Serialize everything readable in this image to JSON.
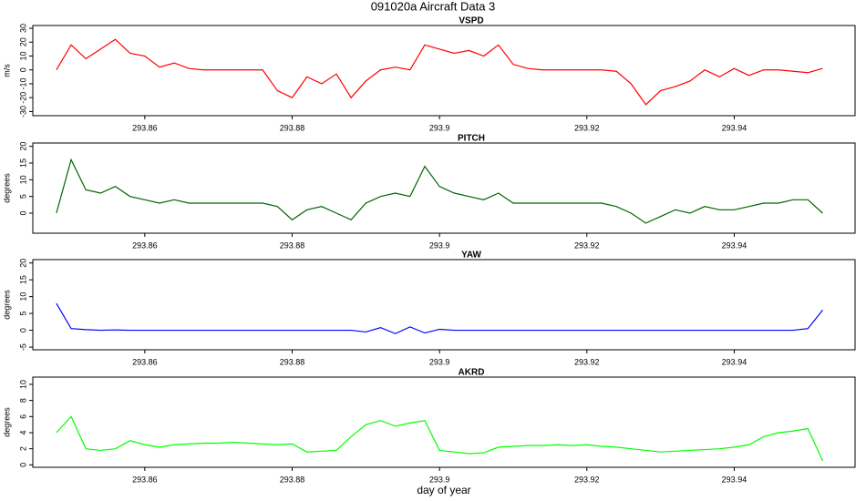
{
  "title": "091020a   Aircraft Data 3",
  "xlabel": "day of year",
  "chart_data": [
    {
      "type": "line",
      "title": "VSPD",
      "ylabel": "m/s",
      "color": "#ff0000",
      "x": [
        293.848,
        293.85,
        293.852,
        293.854,
        293.856,
        293.858,
        293.86,
        293.862,
        293.864,
        293.866,
        293.868,
        293.87,
        293.872,
        293.874,
        293.876,
        293.878,
        293.88,
        293.882,
        293.884,
        293.886,
        293.888,
        293.89,
        293.892,
        293.894,
        293.896,
        293.898,
        293.9,
        293.902,
        293.904,
        293.906,
        293.908,
        293.91,
        293.912,
        293.914,
        293.916,
        293.918,
        293.92,
        293.922,
        293.924,
        293.926,
        293.928,
        293.93,
        293.932,
        293.934,
        293.936,
        293.938,
        293.94,
        293.942,
        293.944,
        293.946,
        293.948,
        293.95,
        293.952
      ],
      "values": [
        0,
        18,
        8,
        15,
        22,
        12,
        10,
        2,
        5,
        1,
        0,
        0,
        0,
        0,
        0,
        -15,
        -20,
        -5,
        -10,
        -3,
        -20,
        -8,
        0,
        2,
        0,
        18,
        15,
        12,
        14,
        10,
        18,
        4,
        1,
        0,
        0,
        0,
        0,
        0,
        -1,
        -10,
        -25,
        -15,
        -12,
        -8,
        0,
        -5,
        1,
        -4,
        0,
        0,
        -1,
        -2,
        1
      ],
      "xlim": [
        293.8448,
        293.9564
      ],
      "xticks": [
        293.86,
        293.88,
        293.9,
        293.92,
        293.94
      ],
      "ylim": [
        -33,
        32
      ],
      "yticks": [
        -30,
        -20,
        -10,
        0,
        10,
        20,
        30
      ]
    },
    {
      "type": "line",
      "title": "PITCH",
      "ylabel": "degrees",
      "color": "#006400",
      "x": [
        293.848,
        293.85,
        293.852,
        293.854,
        293.856,
        293.858,
        293.86,
        293.862,
        293.864,
        293.866,
        293.868,
        293.87,
        293.872,
        293.874,
        293.876,
        293.878,
        293.88,
        293.882,
        293.884,
        293.886,
        293.888,
        293.89,
        293.892,
        293.894,
        293.896,
        293.898,
        293.9,
        293.902,
        293.904,
        293.906,
        293.908,
        293.91,
        293.912,
        293.914,
        293.916,
        293.918,
        293.92,
        293.922,
        293.924,
        293.926,
        293.928,
        293.93,
        293.932,
        293.934,
        293.936,
        293.938,
        293.94,
        293.942,
        293.944,
        293.946,
        293.948,
        293.95,
        293.952
      ],
      "values": [
        0,
        16,
        7,
        6,
        8,
        5,
        4,
        3,
        4,
        3,
        3,
        3,
        3,
        3,
        3,
        2,
        -2,
        1,
        2,
        0,
        -2,
        3,
        5,
        6,
        5,
        14,
        8,
        6,
        5,
        4,
        6,
        3,
        3,
        3,
        3,
        3,
        3,
        3,
        2,
        0,
        -3,
        -1,
        1,
        0,
        2,
        1,
        1,
        2,
        3,
        3,
        4,
        4,
        0
      ],
      "xlim": [
        293.8448,
        293.9564
      ],
      "xticks": [
        293.86,
        293.88,
        293.9,
        293.92,
        293.94
      ],
      "ylim": [
        -6,
        21
      ],
      "yticks": [
        0,
        5,
        10,
        15,
        20
      ]
    },
    {
      "type": "line",
      "title": "YAW",
      "ylabel": "degrees",
      "color": "#0000ff",
      "x": [
        293.848,
        293.85,
        293.852,
        293.854,
        293.856,
        293.858,
        293.86,
        293.862,
        293.864,
        293.866,
        293.868,
        293.87,
        293.872,
        293.874,
        293.876,
        293.878,
        293.88,
        293.882,
        293.884,
        293.886,
        293.888,
        293.89,
        293.892,
        293.894,
        293.896,
        293.898,
        293.9,
        293.902,
        293.904,
        293.906,
        293.908,
        293.91,
        293.912,
        293.914,
        293.916,
        293.918,
        293.92,
        293.922,
        293.924,
        293.926,
        293.928,
        293.93,
        293.932,
        293.934,
        293.936,
        293.938,
        293.94,
        293.942,
        293.944,
        293.946,
        293.948,
        293.95,
        293.952
      ],
      "values": [
        8,
        0.5,
        0.2,
        0,
        0.1,
        0,
        0,
        0,
        0,
        0,
        0,
        0,
        0,
        0,
        0,
        0,
        0,
        0,
        0,
        0,
        0,
        -0.5,
        0.8,
        -1,
        1,
        -0.8,
        0.3,
        0,
        0,
        0,
        0,
        0,
        0,
        0,
        0,
        0,
        0,
        0,
        0,
        0,
        0,
        0,
        0,
        0,
        0,
        0,
        0,
        0,
        0,
        0,
        0,
        0.5,
        6
      ],
      "xlim": [
        293.8448,
        293.9564
      ],
      "xticks": [
        293.86,
        293.88,
        293.9,
        293.92,
        293.94
      ],
      "ylim": [
        -5.8,
        21
      ],
      "yticks": [
        -5,
        0,
        5,
        10,
        15,
        20
      ]
    },
    {
      "type": "line",
      "title": "AKRD",
      "ylabel": "degrees",
      "color": "#00ff00",
      "x": [
        293.848,
        293.85,
        293.852,
        293.854,
        293.856,
        293.858,
        293.86,
        293.862,
        293.864,
        293.866,
        293.868,
        293.87,
        293.872,
        293.874,
        293.876,
        293.878,
        293.88,
        293.882,
        293.884,
        293.886,
        293.888,
        293.89,
        293.892,
        293.894,
        293.896,
        293.898,
        293.9,
        293.902,
        293.904,
        293.906,
        293.908,
        293.91,
        293.912,
        293.914,
        293.916,
        293.918,
        293.92,
        293.922,
        293.924,
        293.926,
        293.928,
        293.93,
        293.932,
        293.934,
        293.936,
        293.938,
        293.94,
        293.942,
        293.944,
        293.946,
        293.948,
        293.95,
        293.952
      ],
      "values": [
        4,
        6,
        2,
        1.8,
        2,
        3,
        2.5,
        2.2,
        2.5,
        2.6,
        2.7,
        2.7,
        2.8,
        2.7,
        2.6,
        2.5,
        2.6,
        1.6,
        1.7,
        1.8,
        3.5,
        5,
        5.5,
        4.8,
        5.2,
        5.5,
        1.8,
        1.6,
        1.4,
        1.5,
        2.2,
        2.3,
        2.4,
        2.4,
        2.5,
        2.4,
        2.5,
        2.3,
        2.2,
        2,
        1.8,
        1.6,
        1.7,
        1.8,
        1.9,
        2,
        2.2,
        2.5,
        3.5,
        4,
        4.2,
        4.5,
        0.5
      ],
      "xlim": [
        293.8448,
        293.9564
      ],
      "xticks": [
        293.86,
        293.88,
        293.9,
        293.92,
        293.94
      ],
      "ylim": [
        -0.3,
        10.9
      ],
      "yticks": [
        0,
        2,
        4,
        6,
        8,
        10
      ]
    }
  ]
}
